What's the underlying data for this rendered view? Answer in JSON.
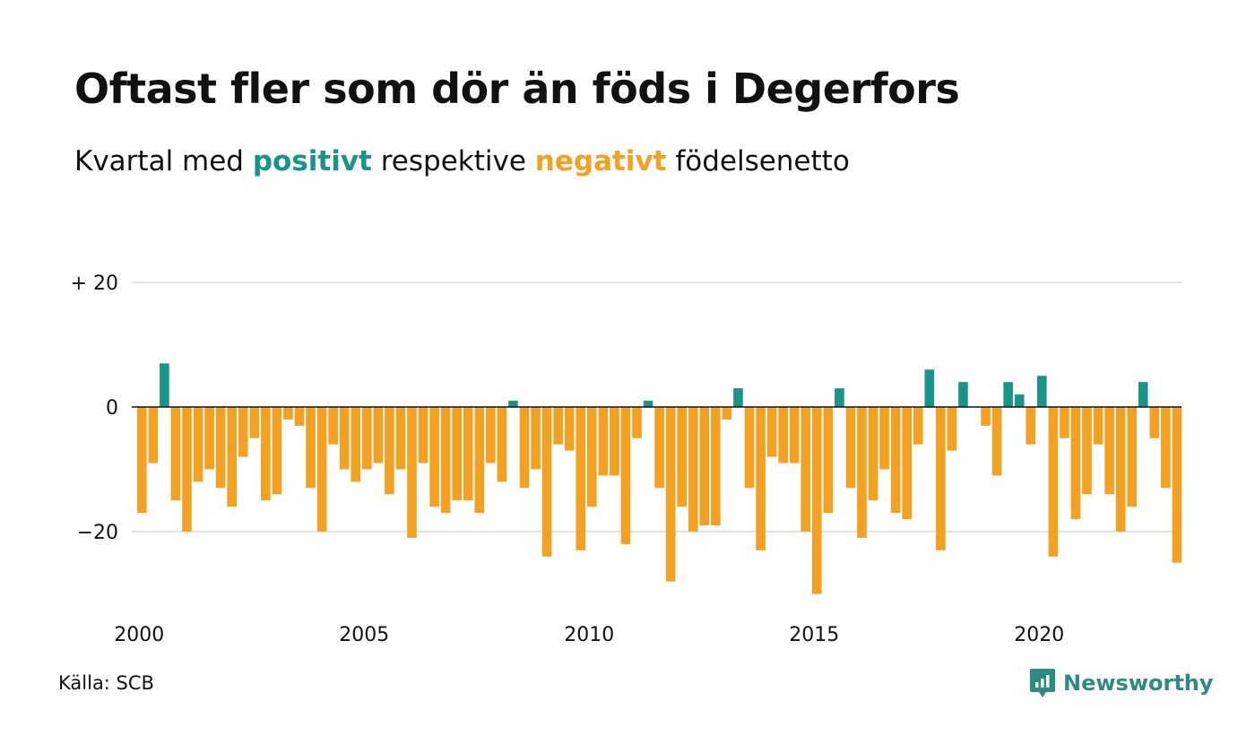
{
  "title": "Oftast fler som dör än föds i Degerfors",
  "subtitle": {
    "prefix": "Kvartal med ",
    "positive": "positivt",
    "middle": " respektive ",
    "negative": "negativt",
    "suffix": " födelsenetto"
  },
  "source": "Källa: SCB",
  "brand": "Newsworthy",
  "colors": {
    "positive": "#189488",
    "negative": "#f4a020",
    "grid": "#e3e3e3",
    "axis": "#111111"
  },
  "chart_data": {
    "type": "bar",
    "start_year": 2000,
    "start_quarter": 1,
    "x_tick_labels": [
      "2000",
      "2005",
      "2010",
      "2015",
      "2020"
    ],
    "y_ticks": [
      {
        "value": 20,
        "label": "+ 20"
      },
      {
        "value": 0,
        "label": "0"
      },
      {
        "value": -20,
        "label": "−20"
      }
    ],
    "ylim": [
      -31,
      20
    ],
    "grid": true,
    "values": [
      -17,
      -9,
      7,
      -15,
      -20,
      -12,
      -10,
      -13,
      -16,
      -8,
      -5,
      -15,
      -14,
      -2,
      -3,
      -13,
      -20,
      -6,
      -10,
      -12,
      -10,
      -9,
      -14,
      -10,
      -21,
      -9,
      -16,
      -17,
      -15,
      -15,
      -17,
      -9,
      -12,
      1,
      -13,
      -10,
      -24,
      -6,
      -7,
      -23,
      -16,
      -11,
      -11,
      -22,
      -5,
      1,
      -13,
      -28,
      -16,
      -20,
      -19,
      -19,
      -2,
      3,
      -13,
      -23,
      -8,
      -9,
      -9,
      -20,
      -30,
      -17,
      3,
      -13,
      -21,
      -15,
      -10,
      -17,
      -18,
      -6,
      6,
      -23,
      -7,
      4,
      0,
      -3,
      -11,
      4,
      2,
      -6,
      5,
      -24,
      -5,
      -18,
      -14,
      -6,
      -14,
      -20,
      -16,
      4,
      -5,
      -13,
      -25
    ]
  }
}
